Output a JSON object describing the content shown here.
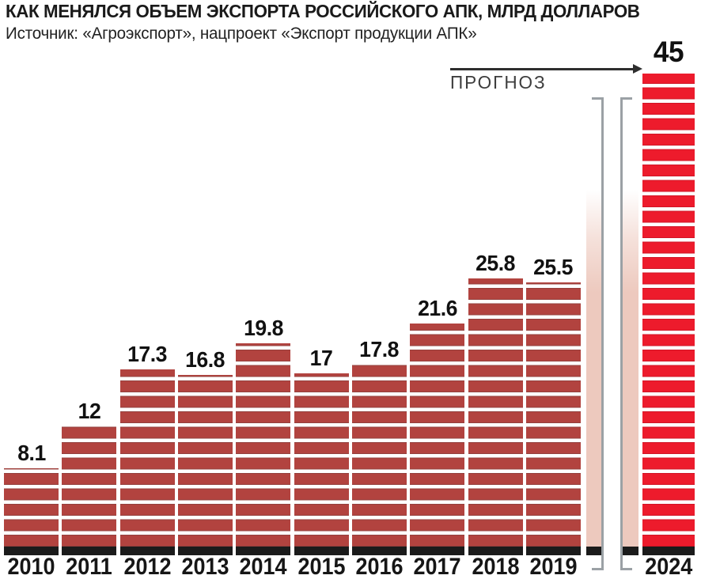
{
  "header": {
    "title": "КАК МЕНЯЛСЯ ОБЪЕМ ЭКСПОРТА РОССИЙСКОГО АПК, МЛРД ДОЛЛАРОВ",
    "source": "Источник: «Агроэкспорт», нацпроект «Экспорт продукции АПК»"
  },
  "forecast": {
    "label": "ПРОГНОЗ"
  },
  "chart_data": {
    "type": "bar",
    "title": "КАК МЕНЯЛСЯ ОБЪЕМ ЭКСПОРТА РОССИЙСКОГО АПК, МЛРД ДОЛЛАРОВ",
    "unit": "млрд долларов",
    "categories": [
      "2010",
      "2011",
      "2012",
      "2013",
      "2014",
      "2015",
      "2016",
      "2017",
      "2018",
      "2019",
      "2024"
    ],
    "values": [
      8.1,
      12,
      17.3,
      16.8,
      19.8,
      17,
      17.8,
      21.6,
      25.8,
      25.5,
      45
    ],
    "forecast_categories": [
      "2024"
    ],
    "axis_break": {
      "between": [
        "2019",
        "2024"
      ],
      "placeholder_bar_count": 2
    },
    "ylim": [
      0,
      45
    ],
    "grid": false,
    "legend": "none"
  },
  "colors": {
    "bar": "#b2433f",
    "bar_edge": "#93403d",
    "bar_forecast": "#ed1b2c",
    "bar_forecast_edge": "#d01526",
    "bar_base": "#1b1b1b",
    "placeholder_bar": "#edc9be",
    "break_mark": "#9ba1a5",
    "arrow": "#2e2e2e",
    "text": "#1a1a1a"
  }
}
